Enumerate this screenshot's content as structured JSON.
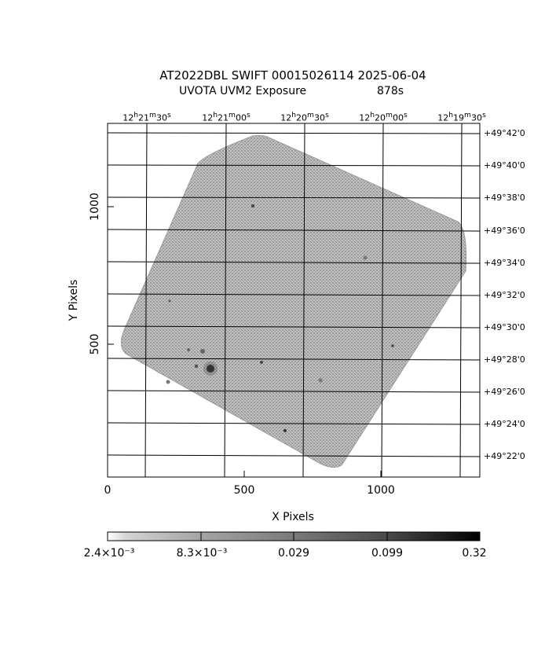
{
  "title": {
    "line1": "AT2022DBL SWIFT 00015026114 2025-06-04",
    "line2_instrument": "UVOTA UVM2 Exposure",
    "line2_exposure": "878s"
  },
  "axes": {
    "xlabel": "X Pixels",
    "ylabel": "Y Pixels",
    "x_ticks": [
      "0",
      "500",
      "1000"
    ],
    "y_ticks": [
      "500",
      "1000"
    ],
    "ra_ticks": [
      {
        "h": "12",
        "m": "21",
        "s": "30"
      },
      {
        "h": "12",
        "m": "21",
        "s": "00"
      },
      {
        "h": "12",
        "m": "20",
        "s": "30"
      },
      {
        "h": "12",
        "m": "20",
        "s": "00"
      },
      {
        "h": "12",
        "m": "19",
        "s": "30"
      }
    ],
    "dec_ticks": [
      "+49°42'0",
      "+49°40'0",
      "+49°38'0",
      "+49°36'0",
      "+49°34'0",
      "+49°32'0",
      "+49°30'0",
      "+49°28'0",
      "+49°26'0",
      "+49°24'0",
      "+49°22'0"
    ]
  },
  "colorbar": {
    "labels": [
      "2.4×10⁻³",
      "8.3×10⁻³",
      "0.029",
      "0.099",
      "0.32"
    ],
    "scale": "log",
    "colors": [
      "#ffffff",
      "#000000"
    ]
  },
  "image_style": {
    "background": "#ffffff",
    "field_color": "#a8a8a8",
    "grid_color": "#000000"
  }
}
